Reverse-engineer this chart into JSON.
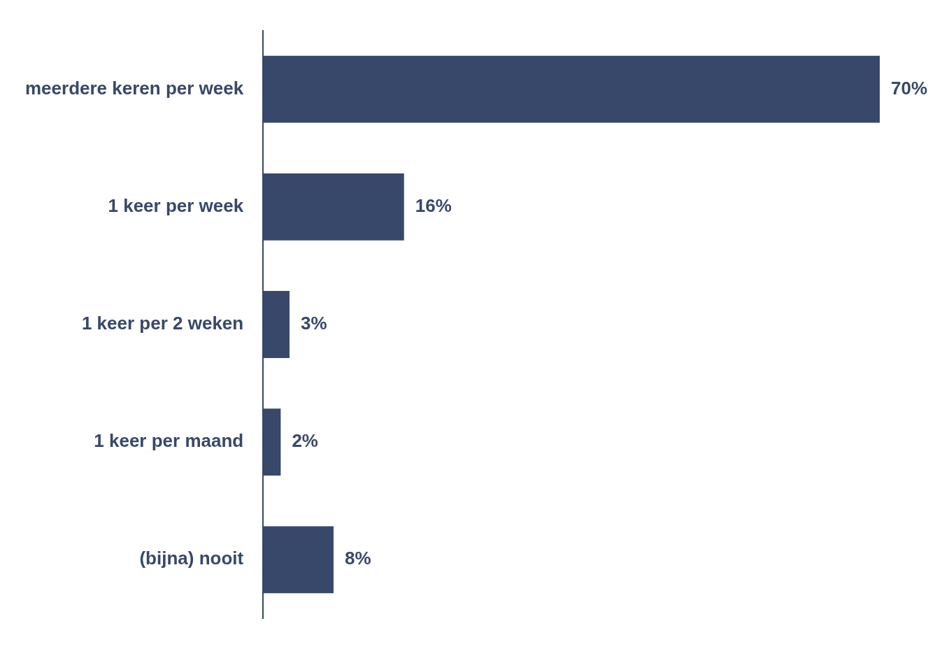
{
  "chart_data": {
    "type": "bar",
    "orientation": "horizontal",
    "categories": [
      "meerdere keren per week",
      "1 keer per week",
      "1 keer per 2 weken",
      "1 keer per maand",
      "(bijna) nooit"
    ],
    "values": [
      70,
      16,
      3,
      2,
      8
    ],
    "value_labels": [
      "70%",
      "16%",
      "3%",
      "2%",
      "8%"
    ],
    "color": "#38486a"
  }
}
